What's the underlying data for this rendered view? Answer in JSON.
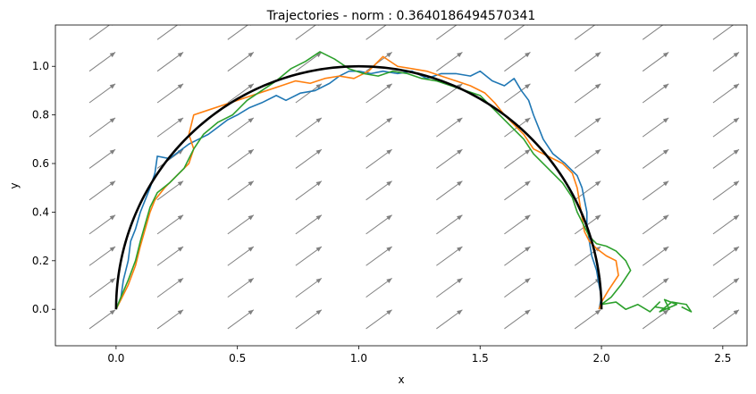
{
  "chart_data": {
    "type": "line",
    "title": "Trajectories - norm : 0.3640186494570341",
    "xlabel": "x",
    "ylabel": "y",
    "xlim": [
      -0.25,
      2.6
    ],
    "ylim": [
      -0.15,
      1.17
    ],
    "xticks": [
      0.0,
      0.5,
      1.0,
      1.5,
      2.0,
      2.5
    ],
    "xtick_labels": [
      "0.0",
      "0.5",
      "1.0",
      "1.5",
      "2.0",
      "2.5"
    ],
    "yticks": [
      0.0,
      0.2,
      0.4,
      0.6,
      0.8,
      1.0
    ],
    "ytick_labels": [
      "0.0",
      "0.2",
      "0.4",
      "0.6",
      "0.8",
      "1.0"
    ],
    "grid": false,
    "legend": "none",
    "colors": {
      "reference": "#000000",
      "vector_field": "#808080",
      "series_1": "#1f77b4",
      "series_2": "#ff7f0e",
      "series_3": "#2ca02c"
    },
    "vector_field": {
      "x": [
        -0.11,
        0.17,
        0.46,
        0.74,
        1.03,
        1.32,
        1.6,
        1.89,
        2.17,
        2.46
      ],
      "y": [
        -0.08,
        0.05,
        0.18,
        0.31,
        0.45,
        0.58,
        0.71,
        0.85,
        0.98,
        1.11
      ],
      "direction": [
        0.107,
        0.078
      ]
    },
    "reference_curve": {
      "type": "semicircle",
      "center": [
        1.0,
        0.0
      ],
      "radius": 1.0
    },
    "series": [
      {
        "color": "#1f77b4",
        "points": [
          [
            0.0,
            0.0
          ],
          [
            0.02,
            0.05
          ],
          [
            0.03,
            0.12
          ],
          [
            0.05,
            0.2
          ],
          [
            0.06,
            0.28
          ],
          [
            0.08,
            0.33
          ],
          [
            0.1,
            0.4
          ],
          [
            0.12,
            0.45
          ],
          [
            0.14,
            0.5
          ],
          [
            0.16,
            0.56
          ],
          [
            0.17,
            0.63
          ],
          [
            0.22,
            0.62
          ],
          [
            0.26,
            0.65
          ],
          [
            0.3,
            0.68
          ],
          [
            0.34,
            0.7
          ],
          [
            0.38,
            0.72
          ],
          [
            0.42,
            0.75
          ],
          [
            0.46,
            0.78
          ],
          [
            0.5,
            0.8
          ],
          [
            0.55,
            0.83
          ],
          [
            0.6,
            0.85
          ],
          [
            0.66,
            0.88
          ],
          [
            0.7,
            0.86
          ],
          [
            0.76,
            0.89
          ],
          [
            0.82,
            0.9
          ],
          [
            0.88,
            0.93
          ],
          [
            0.92,
            0.96
          ],
          [
            0.96,
            0.98
          ],
          [
            1.0,
            0.98
          ],
          [
            1.05,
            0.97
          ],
          [
            1.1,
            0.98
          ],
          [
            1.16,
            0.97
          ],
          [
            1.22,
            0.98
          ],
          [
            1.28,
            0.95
          ],
          [
            1.34,
            0.97
          ],
          [
            1.4,
            0.97
          ],
          [
            1.46,
            0.96
          ],
          [
            1.5,
            0.98
          ],
          [
            1.55,
            0.94
          ],
          [
            1.6,
            0.92
          ],
          [
            1.64,
            0.95
          ],
          [
            1.67,
            0.9
          ],
          [
            1.7,
            0.86
          ],
          [
            1.72,
            0.8
          ],
          [
            1.74,
            0.75
          ],
          [
            1.76,
            0.7
          ],
          [
            1.8,
            0.64
          ],
          [
            1.85,
            0.6
          ],
          [
            1.9,
            0.55
          ],
          [
            1.92,
            0.5
          ],
          [
            1.93,
            0.45
          ],
          [
            1.94,
            0.4
          ],
          [
            1.94,
            0.35
          ],
          [
            1.95,
            0.28
          ],
          [
            1.96,
            0.22
          ],
          [
            1.98,
            0.16
          ],
          [
            1.99,
            0.1
          ],
          [
            2.0,
            0.05
          ],
          [
            1.99,
            0.0
          ]
        ]
      },
      {
        "color": "#ff7f0e",
        "points": [
          [
            0.0,
            0.0
          ],
          [
            0.02,
            0.04
          ],
          [
            0.05,
            0.1
          ],
          [
            0.08,
            0.18
          ],
          [
            0.1,
            0.26
          ],
          [
            0.12,
            0.33
          ],
          [
            0.14,
            0.4
          ],
          [
            0.16,
            0.45
          ],
          [
            0.2,
            0.5
          ],
          [
            0.25,
            0.55
          ],
          [
            0.3,
            0.6
          ],
          [
            0.32,
            0.66
          ],
          [
            0.3,
            0.72
          ],
          [
            0.32,
            0.8
          ],
          [
            0.38,
            0.82
          ],
          [
            0.44,
            0.84
          ],
          [
            0.5,
            0.86
          ],
          [
            0.56,
            0.88
          ],
          [
            0.62,
            0.9
          ],
          [
            0.68,
            0.92
          ],
          [
            0.74,
            0.94
          ],
          [
            0.8,
            0.93
          ],
          [
            0.86,
            0.95
          ],
          [
            0.92,
            0.96
          ],
          [
            0.98,
            0.95
          ],
          [
            1.04,
            0.98
          ],
          [
            1.1,
            1.04
          ],
          [
            1.16,
            1.0
          ],
          [
            1.22,
            0.99
          ],
          [
            1.28,
            0.98
          ],
          [
            1.34,
            0.96
          ],
          [
            1.4,
            0.94
          ],
          [
            1.46,
            0.92
          ],
          [
            1.52,
            0.89
          ],
          [
            1.56,
            0.85
          ],
          [
            1.6,
            0.8
          ],
          [
            1.64,
            0.76
          ],
          [
            1.68,
            0.72
          ],
          [
            1.72,
            0.66
          ],
          [
            1.78,
            0.63
          ],
          [
            1.84,
            0.6
          ],
          [
            1.88,
            0.56
          ],
          [
            1.9,
            0.5
          ],
          [
            1.91,
            0.44
          ],
          [
            1.92,
            0.38
          ],
          [
            1.93,
            0.32
          ],
          [
            1.95,
            0.28
          ],
          [
            1.98,
            0.25
          ],
          [
            2.02,
            0.22
          ],
          [
            2.06,
            0.2
          ],
          [
            2.07,
            0.14
          ],
          [
            2.03,
            0.08
          ],
          [
            2.0,
            0.03
          ],
          [
            1.99,
            0.0
          ]
        ]
      },
      {
        "color": "#2ca02c",
        "points": [
          [
            0.0,
            0.0
          ],
          [
            0.02,
            0.05
          ],
          [
            0.05,
            0.12
          ],
          [
            0.08,
            0.2
          ],
          [
            0.1,
            0.28
          ],
          [
            0.12,
            0.35
          ],
          [
            0.14,
            0.42
          ],
          [
            0.17,
            0.48
          ],
          [
            0.22,
            0.52
          ],
          [
            0.28,
            0.58
          ],
          [
            0.32,
            0.66
          ],
          [
            0.36,
            0.72
          ],
          [
            0.42,
            0.77
          ],
          [
            0.48,
            0.8
          ],
          [
            0.54,
            0.86
          ],
          [
            0.6,
            0.9
          ],
          [
            0.66,
            0.94
          ],
          [
            0.72,
            0.99
          ],
          [
            0.78,
            1.02
          ],
          [
            0.84,
            1.06
          ],
          [
            0.9,
            1.03
          ],
          [
            0.96,
            0.99
          ],
          [
            1.02,
            0.97
          ],
          [
            1.08,
            0.96
          ],
          [
            1.14,
            0.98
          ],
          [
            1.2,
            0.97
          ],
          [
            1.26,
            0.95
          ],
          [
            1.32,
            0.94
          ],
          [
            1.38,
            0.92
          ],
          [
            1.44,
            0.9
          ],
          [
            1.5,
            0.88
          ],
          [
            1.56,
            0.82
          ],
          [
            1.6,
            0.78
          ],
          [
            1.64,
            0.74
          ],
          [
            1.68,
            0.7
          ],
          [
            1.72,
            0.64
          ],
          [
            1.76,
            0.6
          ],
          [
            1.8,
            0.56
          ],
          [
            1.84,
            0.52
          ],
          [
            1.88,
            0.46
          ],
          [
            1.9,
            0.4
          ],
          [
            1.92,
            0.36
          ],
          [
            1.95,
            0.3
          ],
          [
            1.98,
            0.27
          ],
          [
            2.02,
            0.26
          ],
          [
            2.06,
            0.24
          ],
          [
            2.1,
            0.2
          ],
          [
            2.12,
            0.16
          ],
          [
            2.08,
            0.1
          ],
          [
            2.04,
            0.05
          ],
          [
            2.0,
            0.02
          ],
          [
            2.06,
            0.03
          ],
          [
            2.1,
            0.0
          ],
          [
            2.15,
            0.02
          ],
          [
            2.2,
            -0.01
          ],
          [
            2.24,
            0.03
          ],
          [
            2.22,
            0.01
          ],
          [
            2.28,
            0.0
          ],
          [
            2.26,
            0.04
          ],
          [
            2.31,
            0.02
          ],
          [
            2.24,
            -0.01
          ],
          [
            2.29,
            0.03
          ],
          [
            2.35,
            0.02
          ],
          [
            2.37,
            -0.01
          ],
          [
            2.33,
            0.01
          ]
        ]
      }
    ]
  }
}
